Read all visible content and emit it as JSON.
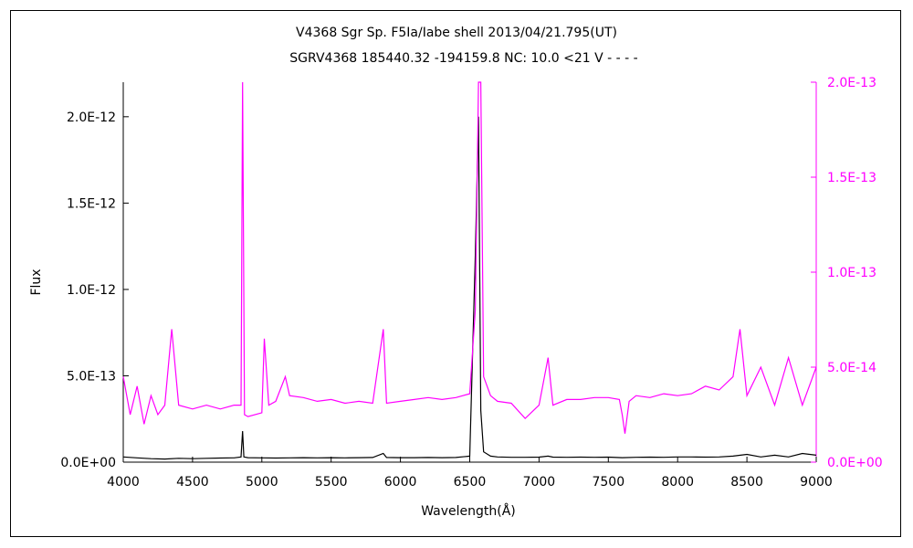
{
  "chart_data": {
    "type": "line",
    "title_line1": "V4368 Sgr    Sp. F5Ia/Iabe shell    2013/04/21.795(UT)",
    "title_line2": "SGRV4368 185440.32 -194159.8 NC: 10.0 <21  V - - - -",
    "xlabel": "Wavelength(Å)",
    "ylabel": "Flux",
    "xlim": [
      4000,
      9000
    ],
    "ylim_left": [
      0,
      2.2e-12
    ],
    "ylim_right": [
      0,
      2e-13
    ],
    "x_ticks": [
      "4000",
      "4500",
      "5000",
      "5500",
      "6000",
      "6500",
      "7000",
      "7500",
      "8000",
      "8500",
      "9000"
    ],
    "y_ticks_left": [
      "0.0E+00",
      "5.0E-13",
      "1.0E-12",
      "1.5E-12",
      "2.0E-12"
    ],
    "y_ticks_right": [
      "0.0E+00",
      "5.0E-14",
      "1.0E-13",
      "1.5E-13",
      "2.0E-13"
    ],
    "colors": {
      "flux": "#000000",
      "scaled": "#ff00ff",
      "axis": "#000000"
    },
    "series": [
      {
        "axis": "left",
        "x": [
          4000,
          4100,
          4200,
          4300,
          4400,
          4500,
          4600,
          4700,
          4800,
          4850,
          4861,
          4870,
          4900,
          5000,
          5100,
          5200,
          5300,
          5400,
          5500,
          5600,
          5700,
          5800,
          5876,
          5900,
          6000,
          6100,
          6200,
          6300,
          6400,
          6500,
          6540,
          6563,
          6580,
          6600,
          6650,
          6700,
          6800,
          6900,
          7000,
          7065,
          7100,
          7200,
          7300,
          7400,
          7500,
          7600,
          7700,
          7800,
          7900,
          8000,
          8100,
          8200,
          8300,
          8400,
          8500,
          8600,
          8700,
          8800,
          8900,
          9000
        ],
        "y": [
          3e-14,
          2.5e-14,
          2e-14,
          1.8e-14,
          2.2e-14,
          2e-14,
          2.2e-14,
          2.4e-14,
          2.5e-14,
          3e-14,
          1.8e-13,
          3e-14,
          2.6e-14,
          2.5e-14,
          2.4e-14,
          2.5e-14,
          2.6e-14,
          2.5e-14,
          2.6e-14,
          2.5e-14,
          2.6e-14,
          2.7e-14,
          5e-14,
          2.7e-14,
          2.6e-14,
          2.6e-14,
          2.7e-14,
          2.6e-14,
          2.7e-14,
          3.5e-14,
          1.2e-12,
          2e-12,
          3e-13,
          6e-14,
          3.5e-14,
          3e-14,
          2.8e-14,
          2.8e-14,
          2.9e-14,
          3.5e-14,
          2.9e-14,
          2.8e-14,
          2.9e-14,
          2.8e-14,
          2.9e-14,
          2.6e-14,
          2.8e-14,
          2.9e-14,
          2.8e-14,
          3e-14,
          3e-14,
          2.9e-14,
          3e-14,
          3.5e-14,
          4.5e-14,
          3e-14,
          4e-14,
          3e-14,
          5e-14,
          4e-14
        ]
      },
      {
        "axis": "right",
        "x": [
          4000,
          4050,
          4100,
          4150,
          4200,
          4250,
          4300,
          4350,
          4400,
          4500,
          4600,
          4700,
          4800,
          4850,
          4861,
          4875,
          4900,
          5000,
          5018,
          5050,
          5100,
          5169,
          5200,
          5300,
          5400,
          5500,
          5600,
          5700,
          5800,
          5876,
          5900,
          6000,
          6100,
          6200,
          6300,
          6400,
          6500,
          6540,
          6563,
          6580,
          6600,
          6650,
          6700,
          6800,
          6900,
          7000,
          7065,
          7100,
          7200,
          7300,
          7400,
          7500,
          7580,
          7600,
          7620,
          7650,
          7700,
          7800,
          7900,
          8000,
          8100,
          8200,
          8300,
          8400,
          8450,
          8500,
          8600,
          8700,
          8800,
          8900,
          9000
        ],
        "y": [
          4.5e-14,
          2.5e-14,
          4e-14,
          2e-14,
          3.5e-14,
          2.5e-14,
          3e-14,
          7e-14,
          3e-14,
          2.8e-14,
          3e-14,
          2.8e-14,
          3e-14,
          3e-14,
          2e-13,
          2.5e-14,
          2.4e-14,
          2.6e-14,
          6.5e-14,
          3e-14,
          3.2e-14,
          4.5e-14,
          3.5e-14,
          3.4e-14,
          3.2e-14,
          3.3e-14,
          3.1e-14,
          3.2e-14,
          3.1e-14,
          7e-14,
          3.1e-14,
          3.2e-14,
          3.3e-14,
          3.4e-14,
          3.3e-14,
          3.4e-14,
          3.6e-14,
          8e-14,
          2e-13,
          2e-13,
          4.5e-14,
          3.5e-14,
          3.2e-14,
          3.1e-14,
          2.3e-14,
          3e-14,
          5.5e-14,
          3e-14,
          3.3e-14,
          3.3e-14,
          3.4e-14,
          3.4e-14,
          3.3e-14,
          2.5e-14,
          1.5e-14,
          3.2e-14,
          3.5e-14,
          3.4e-14,
          3.6e-14,
          3.5e-14,
          3.6e-14,
          4e-14,
          3.8e-14,
          4.5e-14,
          7e-14,
          3.5e-14,
          5e-14,
          3e-14,
          5.5e-14,
          3e-14,
          5e-14
        ]
      }
    ]
  }
}
